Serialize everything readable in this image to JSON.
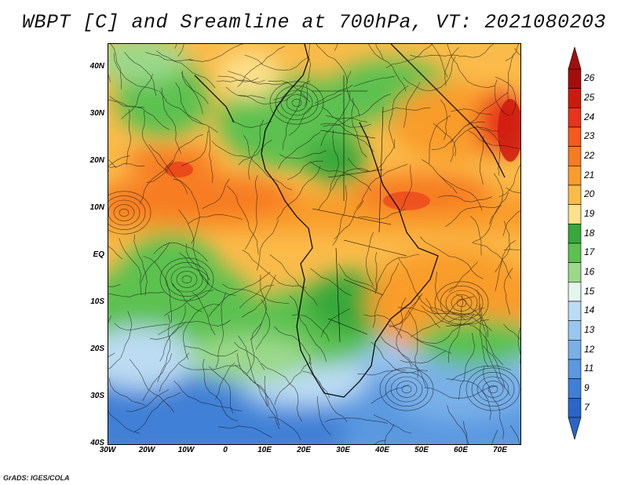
{
  "title": "WBPT [C] and Sreamline at 700hPa, VT: 2021080203",
  "credit": "GrADS: IGES/COLA",
  "map": {
    "y_axis_labels": [
      "40N",
      "30N",
      "20N",
      "10N",
      "EQ",
      "10S",
      "20S",
      "30S",
      "40S"
    ],
    "x_axis_labels": [
      "30W",
      "20W",
      "10W",
      "0",
      "10E",
      "20E",
      "30E",
      "40E",
      "50E",
      "60E",
      "70E"
    ],
    "lon_range": [
      -30,
      75
    ],
    "lat_range": [
      -40,
      45
    ]
  },
  "colorbar": {
    "labels": [
      "26",
      "25",
      "24",
      "23",
      "22",
      "21",
      "20",
      "19",
      "18",
      "17",
      "16",
      "15",
      "14",
      "13",
      "12",
      "11",
      "9",
      "7"
    ],
    "colors": [
      "#a50d0d",
      "#cc1a0f",
      "#e8341a",
      "#f45a1e",
      "#f77b21",
      "#f99c2b",
      "#fbbb4a",
      "#fde08a",
      "#37a83b",
      "#5bc150",
      "#9bd88a",
      "#e4f5ee",
      "#bcdcf3",
      "#98c6ee",
      "#79b0e8",
      "#5a98e0",
      "#3f80d6",
      "#2a65c7"
    ]
  }
}
